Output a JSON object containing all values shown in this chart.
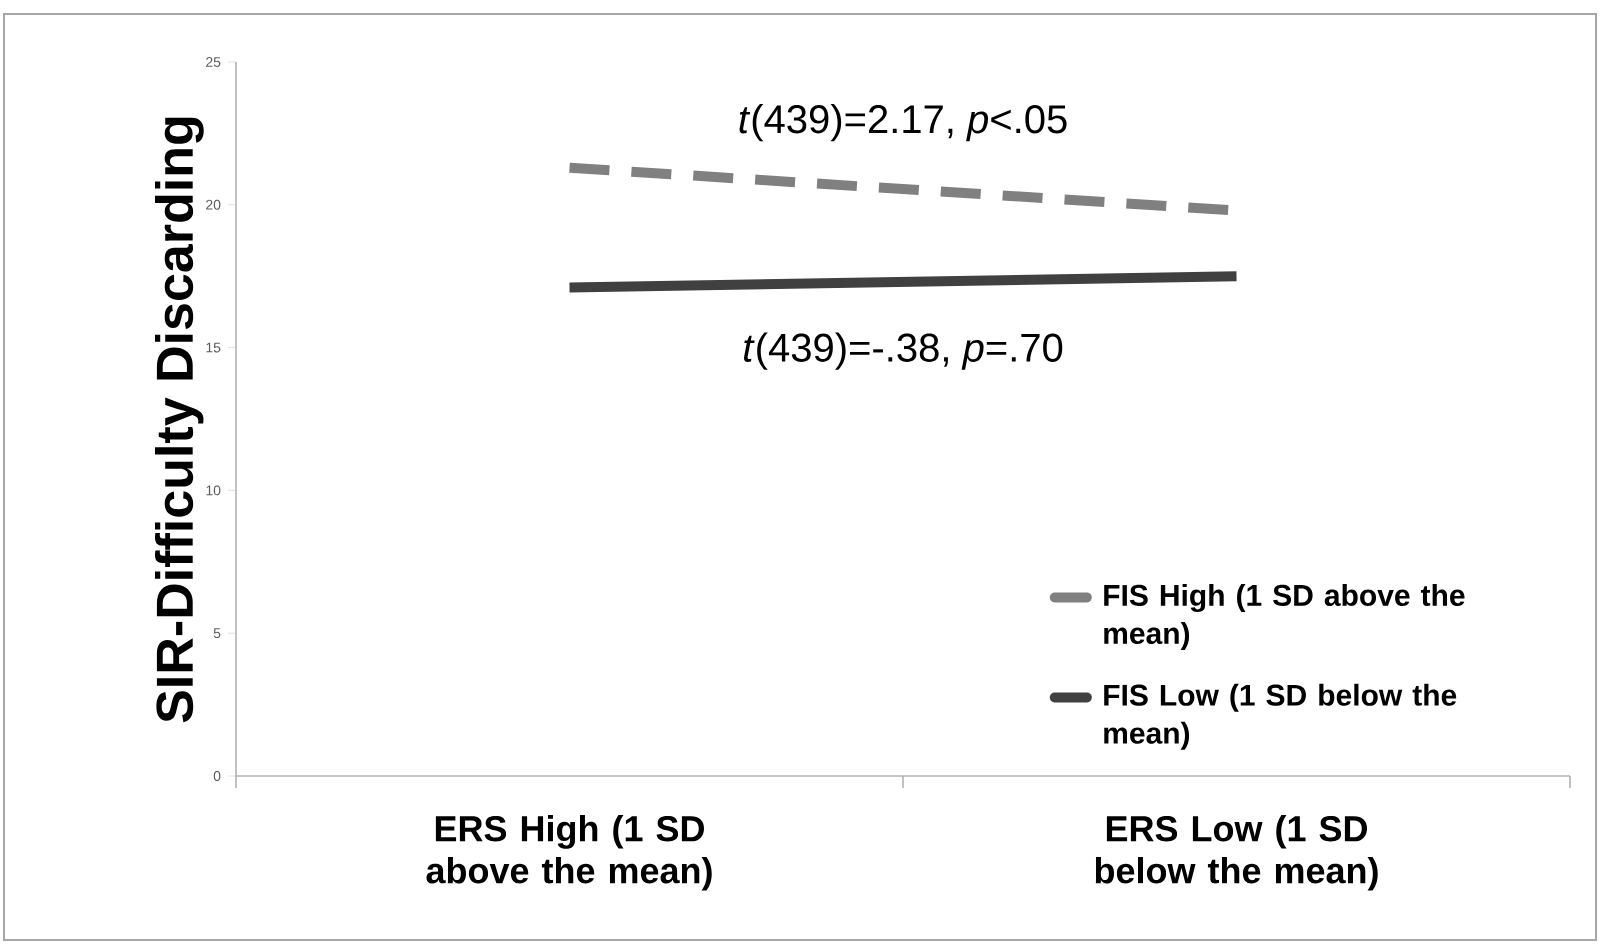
{
  "chart_data": {
    "type": "line",
    "ylabel": "SIR-Difficulty Discarding",
    "categories": [
      "ERS High (1 SD above the mean)",
      "ERS Low (1 SD below the mean)"
    ],
    "series": [
      {
        "name": "FIS High (1 SD above the mean)",
        "color": "#808080",
        "line_style": "dashed",
        "values": [
          21.3,
          19.8
        ]
      },
      {
        "name": "FIS Low (1 SD below the mean)",
        "color": "#404040",
        "line_style": "solid",
        "values": [
          17.1,
          17.5
        ]
      }
    ],
    "ylim": [
      0,
      25
    ],
    "yticks": [
      0,
      5,
      10,
      15,
      20,
      25
    ],
    "annotations": [
      "*t*(439)=2.17, *p*<.05",
      "*t*(439)=-.38, *p*=.70"
    ],
    "legend": "bottom right",
    "marker": "none",
    "grid": false
  }
}
